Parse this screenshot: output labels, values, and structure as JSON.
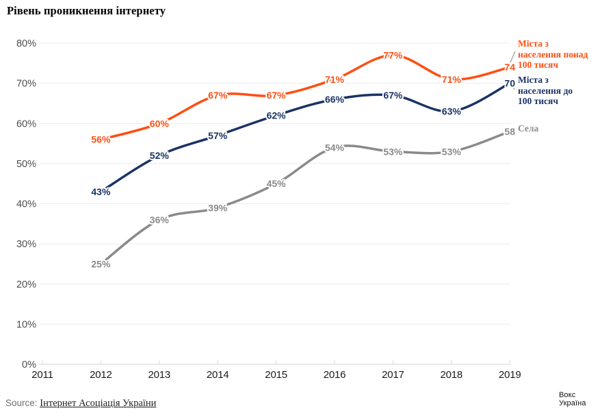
{
  "title": "Рівень проникнення інтернету",
  "chart_data": {
    "type": "line",
    "x": [
      2012,
      2013,
      2014,
      2015,
      2016,
      2017,
      2018,
      2019
    ],
    "x_axis_ticks": [
      "2011",
      "2012",
      "2013",
      "2014",
      "2015",
      "2016",
      "2017",
      "2018",
      "2019"
    ],
    "y_axis_ticks": [
      "0%",
      "10%",
      "20%",
      "30%",
      "40%",
      "50%",
      "60%",
      "70%",
      "80%"
    ],
    "xlim": [
      2011,
      2019
    ],
    "ylim": [
      0,
      80
    ],
    "grid": true,
    "legend_position": "right",
    "background": "#ffffff",
    "grid_color": "#ebebeb",
    "baseline_color": "#d6d6d6",
    "series": [
      {
        "name": "Міста з населення понад 100 тисяч",
        "color": "#ff4e12",
        "values": [
          56,
          60,
          67,
          67,
          71,
          77,
          71,
          74
        ],
        "point_labels": [
          "56%",
          "60%",
          "67%",
          "67%",
          "71%",
          "77%",
          "71%",
          "74"
        ]
      },
      {
        "name": "Міста з населення до 100 тисяч",
        "color": "#1a3365",
        "values": [
          43,
          52,
          57,
          62,
          66,
          67,
          63,
          70
        ],
        "point_labels": [
          "43%",
          "52%",
          "57%",
          "62%",
          "66%",
          "67%",
          "63%",
          "70"
        ]
      },
      {
        "name": "Села",
        "color": "#8a8a8a",
        "values": [
          25,
          36,
          39,
          45,
          54,
          53,
          53,
          58
        ],
        "point_labels": [
          "25%",
          "36%",
          "39%",
          "45%",
          "54%",
          "53%",
          "53%",
          "58"
        ]
      }
    ]
  },
  "legend": {
    "items": [
      {
        "lines": [
          "Міста з",
          "населення понад",
          "100 тисяч"
        ],
        "color": "#ff4e12"
      },
      {
        "lines": [
          "Міста з",
          "населення до",
          "100 тисяч"
        ],
        "color": "#1a3365"
      },
      {
        "lines": [
          "Села"
        ],
        "color": "#8a8a8a"
      }
    ]
  },
  "source": {
    "prefix": "Source:",
    "link": "Інтернет Асоціація України"
  },
  "logo": {
    "line1": "Вокс",
    "line2": "Україна"
  }
}
